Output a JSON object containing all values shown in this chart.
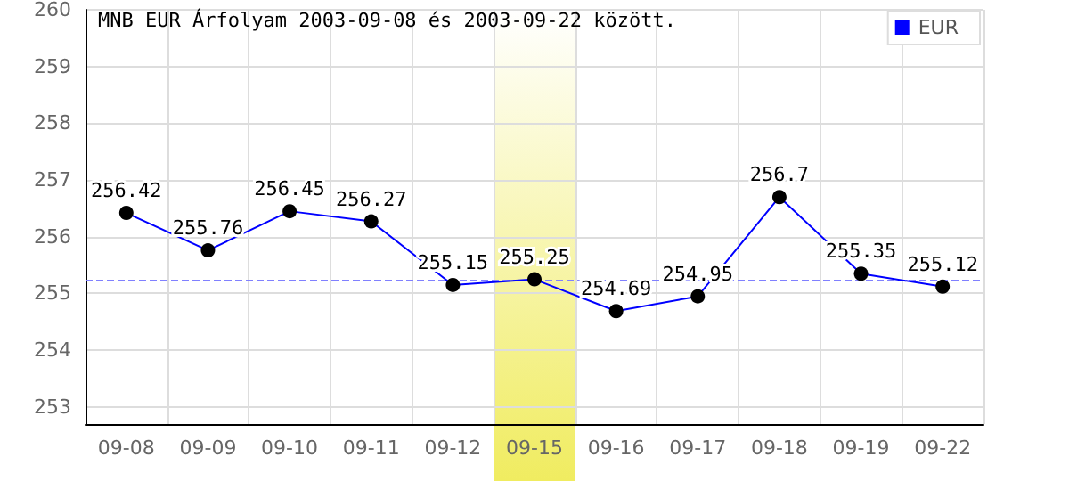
{
  "chart_data": {
    "type": "line",
    "title": "MNB EUR Árfolyam 2003-09-08 és 2003-09-22 között.",
    "categories": [
      "09-08",
      "09-09",
      "09-10",
      "09-11",
      "09-12",
      "09-15",
      "09-16",
      "09-17",
      "09-18",
      "09-19",
      "09-22"
    ],
    "series": [
      {
        "name": "EUR",
        "color": "#0000ff",
        "values": [
          256.42,
          255.76,
          256.45,
          256.27,
          255.15,
          255.25,
          254.69,
          254.95,
          256.7,
          255.35,
          255.12
        ]
      }
    ],
    "ylim": [
      252.7,
      260
    ],
    "yticks": [
      253,
      254,
      255,
      256,
      257,
      258,
      259,
      260
    ],
    "ref_lines": [
      {
        "axis": "y",
        "value": 255.25,
        "color": "#8080ff",
        "line_style": "dashed"
      }
    ],
    "bands": [
      {
        "axis": "x",
        "from": "09-15",
        "to": "09-15",
        "color": "#f0ec60"
      }
    ],
    "data_labels": true,
    "grid": true,
    "legend": "top right",
    "marker": "circle",
    "line_style": "solid"
  }
}
